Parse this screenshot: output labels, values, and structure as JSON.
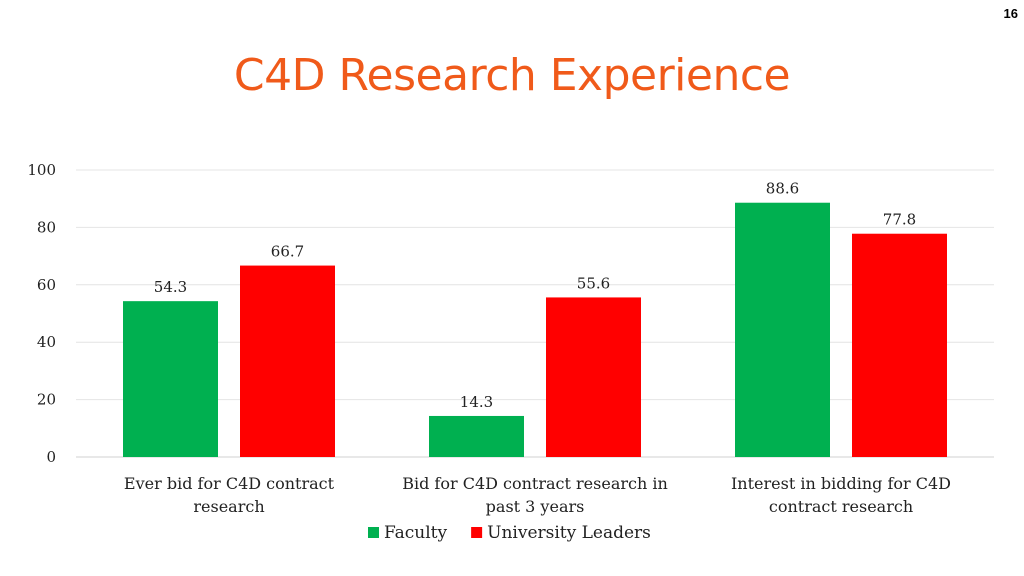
{
  "page_number": "16",
  "chart_data": {
    "type": "bar",
    "title": "C4D Research Experience",
    "categories": [
      [
        "Ever bid for C4D contract",
        "research"
      ],
      [
        "Bid for C4D contract research in",
        "past 3 years"
      ],
      [
        "Interest in bidding for C4D",
        "contract research"
      ]
    ],
    "series": [
      {
        "name": "Faculty",
        "values": [
          54.3,
          14.3,
          88.6
        ],
        "value_labels": [
          "54.3",
          "14.3",
          "88.6"
        ],
        "color": "#00b050"
      },
      {
        "name": "University Leaders",
        "values": [
          66.7,
          55.6,
          77.8
        ],
        "value_labels": [
          "66.7",
          "55.6",
          "77.8"
        ],
        "color": "#ff0000"
      }
    ],
    "ylim": [
      0,
      100
    ],
    "yticks": [
      "0",
      "20",
      "40",
      "60",
      "80",
      "100"
    ],
    "grid": true,
    "legend": "bottom-center",
    "xlabel": "",
    "ylabel": ""
  }
}
